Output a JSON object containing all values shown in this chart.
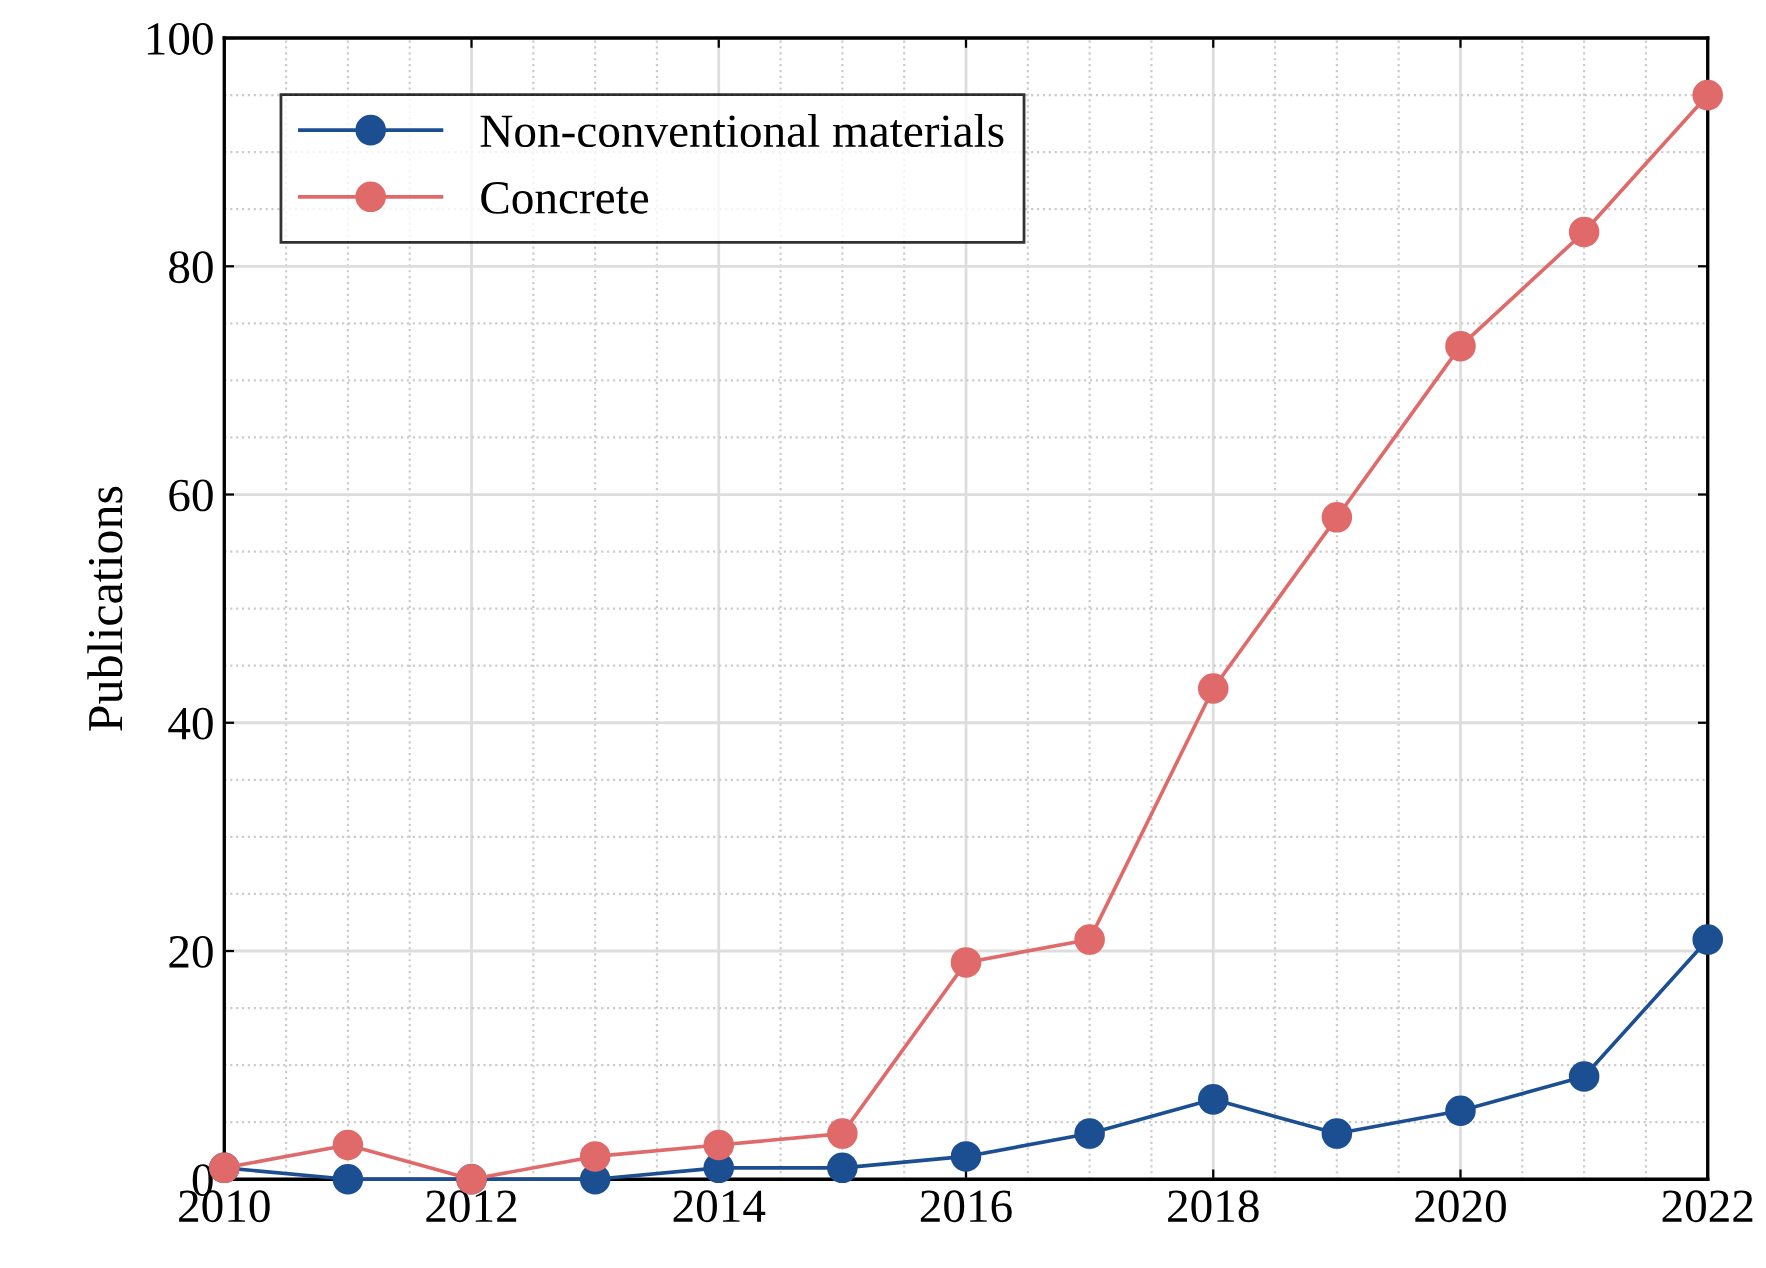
{
  "chart_data": {
    "type": "line",
    "ylabel": "Publications",
    "x": [
      2010,
      2011,
      2012,
      2013,
      2014,
      2015,
      2016,
      2017,
      2018,
      2019,
      2020,
      2021,
      2022
    ],
    "series": [
      {
        "name": "Non-conventional materials",
        "color": "#1c4f92",
        "values": [
          1,
          0,
          0,
          0,
          1,
          1,
          2,
          4,
          7,
          4,
          6,
          9,
          21
        ]
      },
      {
        "name": "Concrete",
        "color": "#e06a6a",
        "values": [
          1,
          3,
          0,
          2,
          3,
          4,
          19,
          21,
          43,
          58,
          73,
          83,
          95
        ]
      }
    ],
    "xlim": [
      2010,
      2022
    ],
    "xticks": [
      2010,
      2012,
      2014,
      2016,
      2018,
      2020,
      2022
    ],
    "ylim": [
      0,
      100
    ],
    "yticks": [
      0,
      20,
      40,
      60,
      80,
      100
    ],
    "grid": true,
    "legend": "top left",
    "marker": "circle",
    "line_style": "solid"
  }
}
